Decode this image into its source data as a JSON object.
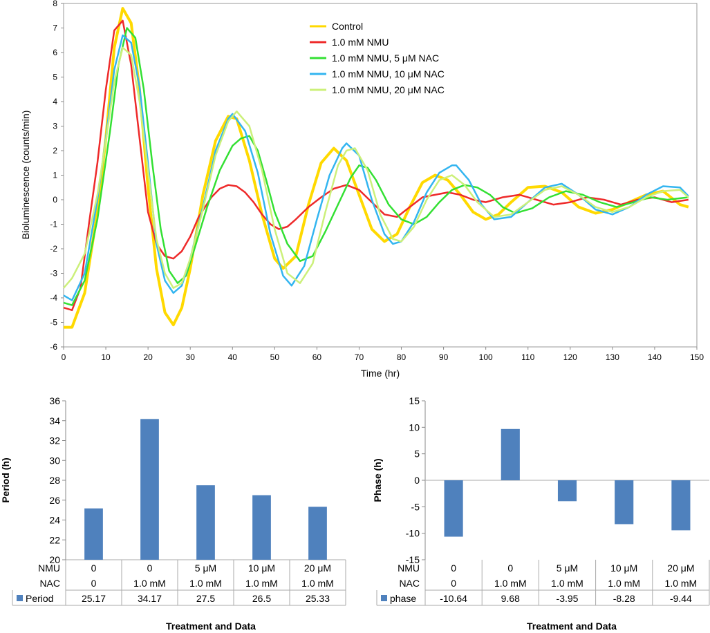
{
  "chart_data": [
    {
      "type": "line",
      "xlabel": "Time (hr)",
      "ylabel": "Bioluminescence (counts/min)",
      "xlim": [
        0,
        150
      ],
      "ylim": [
        -6,
        8
      ],
      "xticks": [
        0,
        10,
        20,
        30,
        40,
        50,
        60,
        70,
        80,
        90,
        100,
        110,
        120,
        130,
        140,
        150
      ],
      "yticks": [
        -6,
        -5,
        -4,
        -3,
        -2,
        -1,
        0,
        1,
        2,
        3,
        4,
        5,
        6,
        7,
        8
      ],
      "legend_position": "top-right",
      "series": [
        {
          "name": "Control",
          "color": "#FFD900",
          "width": 4,
          "x": [
            0,
            2,
            5,
            8,
            10,
            12,
            14,
            16,
            18,
            20,
            22,
            24,
            26,
            28,
            30,
            33,
            36,
            39,
            41,
            44,
            47,
            50,
            52,
            55,
            58,
            61,
            64,
            67,
            70,
            73,
            76,
            79,
            82,
            85,
            88,
            91,
            94,
            97,
            100,
            103,
            106,
            110,
            114,
            118,
            122,
            126,
            130,
            134,
            138,
            142,
            146,
            148
          ],
          "y": [
            -5.2,
            -5.2,
            -3.8,
            -0.5,
            2.5,
            6.2,
            7.8,
            7.2,
            4.5,
            0.5,
            -2.8,
            -4.6,
            -5.1,
            -4.4,
            -2.8,
            0.2,
            2.4,
            3.4,
            3.3,
            1.6,
            -0.6,
            -2.4,
            -2.8,
            -2.3,
            -0.2,
            1.5,
            2.1,
            1.6,
            0.2,
            -1.2,
            -1.7,
            -1.4,
            -0.3,
            0.7,
            1.0,
            0.8,
            0.2,
            -0.5,
            -0.8,
            -0.6,
            -0.1,
            0.5,
            0.55,
            0.3,
            -0.3,
            -0.55,
            -0.4,
            -0.1,
            0.2,
            0.35,
            -0.2,
            -0.3
          ]
        },
        {
          "name": "1.0 mM NMU",
          "color": "#EE2A2A",
          "width": 2.5,
          "x": [
            0,
            2,
            4,
            6,
            8,
            10,
            12,
            14,
            16,
            18,
            20,
            22,
            24,
            26,
            28,
            30,
            32,
            35,
            37,
            39,
            41,
            43,
            45,
            47,
            49,
            51,
            53,
            55,
            58,
            61,
            64,
            67,
            70,
            73,
            76,
            79,
            82,
            85,
            88,
            91,
            94,
            97,
            100,
            104,
            108,
            112,
            116,
            120,
            124,
            128,
            132,
            136,
            140,
            144,
            148
          ],
          "y": [
            -4.4,
            -4.5,
            -3.6,
            -1.0,
            1.5,
            4.5,
            6.9,
            7.3,
            5.5,
            2.5,
            -0.5,
            -1.8,
            -2.3,
            -2.4,
            -2.1,
            -1.5,
            -0.7,
            0.1,
            0.45,
            0.6,
            0.55,
            0.3,
            -0.1,
            -0.6,
            -1.0,
            -1.2,
            -1.1,
            -0.8,
            -0.3,
            0.1,
            0.45,
            0.6,
            0.4,
            -0.1,
            -0.6,
            -0.7,
            -0.3,
            0.1,
            0.2,
            0.3,
            0.2,
            0.0,
            -0.1,
            0.1,
            0.2,
            0.0,
            -0.2,
            -0.1,
            0.1,
            0.0,
            -0.2,
            0.0,
            0.1,
            -0.1,
            0.0
          ]
        },
        {
          "name": "1.0 mM NMU, 5 μM NAC",
          "color": "#33E033",
          "width": 2.5,
          "x": [
            0,
            2,
            5,
            8,
            11,
            13,
            15,
            17,
            19,
            21,
            23,
            25,
            27,
            29,
            31,
            34,
            37,
            40,
            42,
            44,
            46,
            48,
            50,
            53,
            56,
            59,
            62,
            65,
            68,
            70,
            72,
            74,
            77,
            80,
            83,
            86,
            89,
            92,
            95,
            98,
            101,
            104,
            107,
            111,
            115,
            119,
            123,
            127,
            131,
            135,
            139,
            143,
            148
          ],
          "y": [
            -4.2,
            -4.3,
            -3.3,
            -0.8,
            2.8,
            5.5,
            7.0,
            6.6,
            4.5,
            1.5,
            -1.2,
            -2.9,
            -3.4,
            -3.1,
            -2.0,
            -0.3,
            1.2,
            2.2,
            2.5,
            2.6,
            2.0,
            0.8,
            -0.5,
            -1.8,
            -2.5,
            -2.3,
            -1.3,
            -0.2,
            0.9,
            1.4,
            1.3,
            0.8,
            -0.2,
            -0.8,
            -1.0,
            -0.7,
            -0.1,
            0.4,
            0.6,
            0.5,
            0.2,
            -0.3,
            -0.55,
            -0.35,
            0.1,
            0.35,
            0.2,
            -0.1,
            -0.3,
            -0.1,
            0.1,
            0.0,
            0.1
          ]
        },
        {
          "name": "1.0 mM NMU, 10 μM NAC",
          "color": "#33B5F0",
          "width": 2.5,
          "x": [
            0,
            2,
            5,
            8,
            10,
            12,
            14,
            16,
            18,
            20,
            22,
            24,
            26,
            28,
            30,
            33,
            36,
            39,
            40,
            43,
            46,
            49,
            52,
            54,
            57,
            60,
            63,
            66,
            67,
            70,
            73,
            76,
            78,
            80,
            83,
            86,
            89,
            92,
            93,
            96,
            99,
            102,
            106,
            110,
            114,
            118,
            122,
            126,
            130,
            134,
            138,
            142,
            146,
            148
          ],
          "y": [
            -3.9,
            -4.1,
            -3.0,
            0.0,
            2.5,
            5.3,
            6.7,
            6.4,
            4.6,
            1.5,
            -1.8,
            -3.3,
            -3.8,
            -3.5,
            -2.4,
            -0.3,
            2.0,
            3.3,
            3.5,
            2.8,
            1.1,
            -1.4,
            -3.1,
            -3.5,
            -2.7,
            -0.8,
            1.0,
            2.1,
            2.3,
            1.8,
            0.0,
            -1.4,
            -1.8,
            -1.7,
            -0.9,
            0.3,
            1.1,
            1.4,
            1.4,
            0.8,
            -0.2,
            -0.8,
            -0.7,
            -0.1,
            0.5,
            0.65,
            0.2,
            -0.4,
            -0.6,
            -0.3,
            0.2,
            0.55,
            0.5,
            0.15
          ]
        },
        {
          "name": "1.0 mM NMU, 20 μM NAC",
          "color": "#CCF07A",
          "width": 2.5,
          "x": [
            0,
            2,
            5,
            8,
            10,
            12,
            14,
            16,
            18,
            20,
            22,
            24,
            26,
            28,
            30,
            33,
            36,
            39,
            41,
            44,
            47,
            50,
            53,
            56,
            59,
            62,
            65,
            67,
            69,
            72,
            75,
            78,
            80,
            83,
            86,
            89,
            92,
            95,
            98,
            102,
            106,
            110,
            114,
            118,
            122,
            126,
            130,
            134,
            138,
            142,
            146,
            148
          ],
          "y": [
            -3.6,
            -3.2,
            -2.2,
            0.2,
            2.4,
            4.8,
            6.2,
            5.9,
            4.0,
            1.2,
            -1.6,
            -3.0,
            -3.6,
            -3.4,
            -2.4,
            -0.4,
            1.8,
            3.2,
            3.6,
            3.0,
            1.2,
            -1.2,
            -3.0,
            -3.4,
            -2.6,
            -0.5,
            1.4,
            2.0,
            2.1,
            1.2,
            -0.6,
            -1.6,
            -1.7,
            -1.1,
            0.0,
            0.8,
            1.0,
            0.6,
            -0.1,
            -0.7,
            -0.6,
            -0.1,
            0.4,
            0.55,
            0.2,
            -0.3,
            -0.5,
            -0.3,
            0.1,
            0.35,
            0.4,
            0.1
          ]
        }
      ]
    },
    {
      "type": "bar",
      "ylabel": "Period (h)",
      "xlabel": "Treatment and Data",
      "ylim": [
        20,
        36
      ],
      "yticks": [
        20,
        22,
        24,
        26,
        28,
        30,
        32,
        34,
        36
      ],
      "row_labels": [
        "NMU",
        "NAC"
      ],
      "series_name": "Period",
      "color": "#4F81BD",
      "categories": [
        {
          "nmu": "0",
          "nac": "0"
        },
        {
          "nmu": "0",
          "nac": "1.0 mM"
        },
        {
          "nmu": "5 μM",
          "nac": "1.0 mM"
        },
        {
          "nmu": "10  μM",
          "nac": "1.0 mM"
        },
        {
          "nmu": "20  μM",
          "nac": "1.0 mM"
        }
      ],
      "values": [
        25.17,
        34.17,
        27.5,
        26.5,
        25.33
      ],
      "value_labels": [
        "25.17",
        "34.17",
        "27.5",
        "26.5",
        "25.33"
      ]
    },
    {
      "type": "bar",
      "ylabel": "Phase (h)",
      "xlabel": "Treatment and Data",
      "ylim": [
        -15,
        15
      ],
      "yticks": [
        -15,
        -10,
        -5,
        0,
        5,
        10,
        15
      ],
      "row_labels": [
        "NMU",
        "NAC"
      ],
      "series_name": "phase",
      "color": "#4F81BD",
      "categories": [
        {
          "nmu": "0",
          "nac": "0"
        },
        {
          "nmu": "0",
          "nac": "1.0 mM"
        },
        {
          "nmu": "5 μM",
          "nac": "1.0 mM"
        },
        {
          "nmu": "10  μM",
          "nac": "1.0 mM"
        },
        {
          "nmu": "20  μM",
          "nac": "1.0 mM"
        }
      ],
      "values": [
        -10.64,
        9.68,
        -3.95,
        -8.28,
        -9.44
      ],
      "value_labels": [
        "-10.64",
        "9.68",
        "-3.95",
        "-8.28",
        "-9.44"
      ]
    }
  ]
}
